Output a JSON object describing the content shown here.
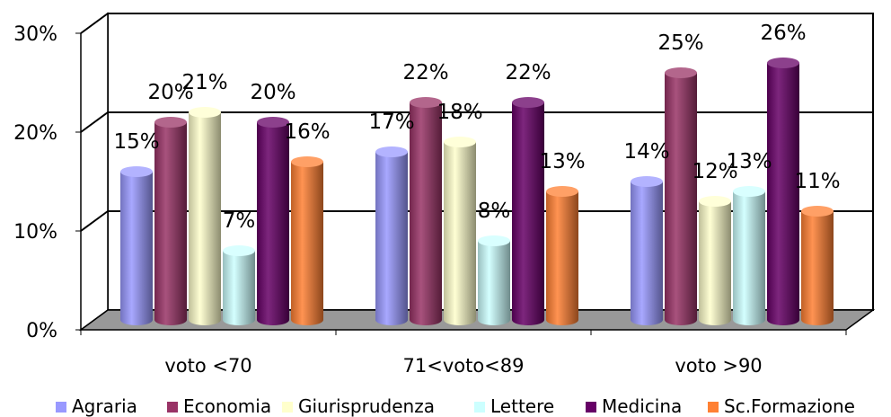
{
  "chart_data": {
    "type": "bar",
    "categories": [
      "voto <70",
      "71<voto<89",
      "voto >90"
    ],
    "series": [
      {
        "name": "Agraria",
        "values": [
          15,
          17,
          14
        ],
        "labels": [
          "15%",
          "17%",
          "14%"
        ],
        "color": "#9999ff"
      },
      {
        "name": "Economia",
        "values": [
          20,
          22,
          25
        ],
        "labels": [
          "20%",
          "22%",
          "25%"
        ],
        "color": "#993366"
      },
      {
        "name": "Giurisprudenza",
        "values": [
          21,
          18,
          12
        ],
        "labels": [
          "21%",
          "18%",
          "12%"
        ],
        "color": "#ffffcc"
      },
      {
        "name": "Lettere",
        "values": [
          7,
          8,
          13
        ],
        "labels": [
          "7%",
          "8%",
          "13%"
        ],
        "color": "#ccffff"
      },
      {
        "name": "Medicina",
        "values": [
          20,
          22,
          26
        ],
        "labels": [
          "20%",
          "22%",
          "26%"
        ],
        "color": "#660066"
      },
      {
        "name": "Sc.Formazione",
        "values": [
          16,
          13,
          11
        ],
        "labels": [
          "16%",
          "13%",
          "11%"
        ],
        "color": "#ff8033"
      }
    ],
    "yticks": [
      "0%",
      "10%",
      "20%",
      "30%"
    ],
    "ylim": [
      0,
      30
    ],
    "grid": true,
    "legend_position": "bottom",
    "style": "3d-cylinder",
    "floor_color": "#999999"
  }
}
